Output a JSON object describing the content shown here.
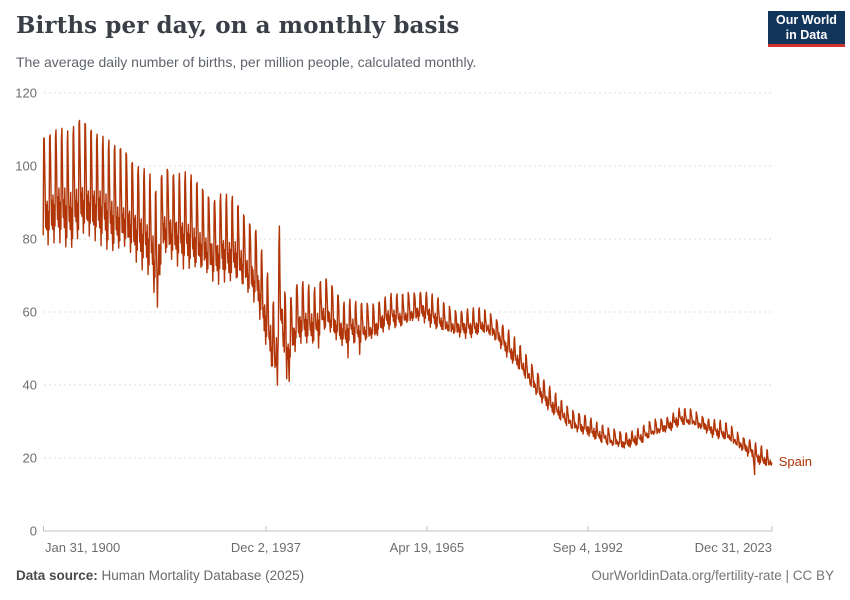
{
  "logo": {
    "line1": "Our World",
    "line2": "in Data",
    "bg_color": "#12355b",
    "accent_color": "#cf3530"
  },
  "footer": {
    "datasource_label": "Data source:",
    "datasource_value": " Human Mortality Database (2025)",
    "license_text": "OurWorldinData.org/fertility-rate | CC BY"
  },
  "chart_data": {
    "type": "line",
    "title": "Births per day, on a monthly basis",
    "subtitle": "The average daily number of births, per million people, calculated monthly.",
    "entity_label": "Spain",
    "line_color": "#b13507",
    "grid_color": "#dcdcdc",
    "axis_color": "#bfbfbf",
    "tick_label_color": "#6e6e6e",
    "grid": "dashed-horizontal",
    "legend_position": "end-of-line-label",
    "y_axis": {
      "range": [
        0,
        120
      ],
      "ticks": [
        0,
        20,
        40,
        60,
        80,
        100,
        120
      ]
    },
    "x_axis": {
      "range": [
        1900,
        2024
      ],
      "ticks": [
        {
          "label": "Jan 31, 1900",
          "t": 1900.083,
          "align": "start"
        },
        {
          "label": "Dec 2, 1937",
          "t": 1937.917,
          "align": "middle"
        },
        {
          "label": "Apr 19, 1965",
          "t": 1965.3,
          "align": "middle"
        },
        {
          "label": "Sep 4, 1992",
          "t": 1992.677,
          "align": "middle"
        },
        {
          "label": "Dec 31, 2023",
          "t": 2024.0,
          "align": "end"
        }
      ]
    },
    "monthly_model": {
      "start_year": 1900,
      "end_year": 2023,
      "yearly_mean_births_per_day": [
        93,
        94,
        95,
        94.5,
        93,
        95,
        97,
        96,
        95,
        94,
        93,
        91.5,
        90.5,
        91,
        90,
        88,
        86.5,
        85,
        83,
        78,
        88,
        87,
        86,
        85.5,
        85,
        84,
        83,
        82,
        80.5,
        79.5,
        81,
        79.5,
        80,
        78,
        76,
        74,
        72,
        64,
        58,
        50,
        64,
        52,
        57,
        60,
        60,
        59,
        59,
        62,
        62,
        59.5,
        58,
        56,
        58,
        56.5,
        57,
        57,
        57.5,
        59,
        60,
        60.5,
        60,
        60.5,
        61,
        61.5,
        62,
        61,
        60,
        59,
        58,
        57.5,
        57,
        57,
        57,
        57,
        57.5,
        57,
        56,
        54.5,
        52.5,
        50.5,
        48.5,
        46.5,
        44,
        41.5,
        39.5,
        37.5,
        35.5,
        34,
        32.5,
        31,
        30,
        29.5,
        29,
        28,
        27,
        26.5,
        25.5,
        25.5,
        24.8,
        25,
        25.5,
        26,
        27,
        28,
        28.5,
        29,
        29.5,
        30.5,
        31.5,
        31,
        31,
        30,
        29.5,
        28.5,
        28,
        27.5,
        27,
        25.8,
        24.5,
        23.5,
        22.5,
        21,
        20.3,
        19.6
      ],
      "seasonal_profile": [
        -0.8,
        0.9,
        1.0,
        0.45,
        -0.15,
        -0.6,
        -0.25,
        -0.7,
        -0.1,
        -0.55,
        -1.0,
        -0.35
      ],
      "seasonal_amplitude_anchors": [
        [
          1900,
          15
        ],
        [
          1906,
          16
        ],
        [
          1912,
          14
        ],
        [
          1918,
          13
        ],
        [
          1925,
          12
        ],
        [
          1932,
          11
        ],
        [
          1936,
          10
        ],
        [
          1940,
          10
        ],
        [
          1944,
          8
        ],
        [
          1950,
          6.5
        ],
        [
          1955,
          5
        ],
        [
          1960,
          4.2
        ],
        [
          1966,
          4
        ],
        [
          1975,
          3.2
        ],
        [
          1982,
          3.5
        ],
        [
          1990,
          2.6
        ],
        [
          2000,
          2
        ],
        [
          2010,
          2
        ],
        [
          2023,
          2.2
        ]
      ],
      "event_adjustments": [
        [
          1918,
          10,
          -2
        ],
        [
          1918,
          11,
          -3
        ],
        [
          1918,
          12,
          -3
        ],
        [
          1919,
          4,
          -4
        ],
        [
          1919,
          5,
          -6
        ],
        [
          1919,
          6,
          -9
        ],
        [
          1919,
          7,
          -4
        ],
        [
          1938,
          12,
          -2
        ],
        [
          1939,
          10,
          -2
        ],
        [
          1939,
          11,
          -6
        ],
        [
          1939,
          12,
          -4
        ],
        [
          1940,
          1,
          6
        ],
        [
          1940,
          2,
          10
        ],
        [
          1940,
          3,
          14
        ],
        [
          1940,
          4,
          6
        ],
        [
          1941,
          5,
          -4
        ],
        [
          1941,
          6,
          -5
        ],
        [
          1941,
          10,
          -3
        ],
        [
          1941,
          11,
          -4
        ],
        [
          1946,
          11,
          -3
        ],
        [
          1951,
          11,
          -3
        ],
        [
          1953,
          11,
          -3
        ],
        [
          2020,
          12,
          -3.5
        ],
        [
          2021,
          1,
          -4.5
        ]
      ]
    }
  }
}
